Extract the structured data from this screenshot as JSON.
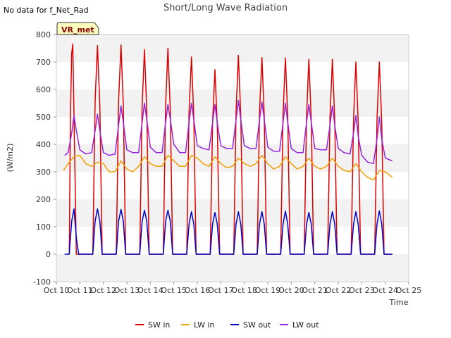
{
  "chart_data": {
    "type": "line",
    "title": "Short/Long Wave Radiation",
    "note": "No data for f_Net_Rad",
    "badge": "VR_met",
    "xlabel": "Time",
    "ylabel": "(W/m2)",
    "xlim": [
      10,
      25
    ],
    "ylim": [
      -100,
      800
    ],
    "x_ticks": [
      10,
      11,
      12,
      13,
      14,
      15,
      16,
      17,
      18,
      19,
      20,
      21,
      22,
      23,
      24,
      25
    ],
    "x_tick_labels": [
      "Oct 10",
      "Oct 11",
      "Oct 12",
      "Oct 13",
      "Oct 14",
      "Oct 15",
      "Oct 16",
      "Oct 17",
      "Oct 18",
      "Oct 19",
      "Oct 20",
      "Oct 21",
      "Oct 22",
      "Oct 23",
      "Oct 24",
      "Oct 25"
    ],
    "y_ticks": [
      -100,
      0,
      100,
      200,
      300,
      400,
      500,
      600,
      700,
      800
    ],
    "y_tick_labels": [
      "-100",
      "0",
      "100",
      "200",
      "300",
      "400",
      "500",
      "600",
      "700",
      "800"
    ],
    "grid": "alternating horizontal bands",
    "legend_position": "bottom",
    "series": [
      {
        "name": "SW in",
        "color": "#dd0000",
        "x": [
          10.55,
          10.6,
          10.65,
          10.7,
          10.75,
          10.8,
          10.85,
          10.95,
          11.55,
          11.65,
          11.75,
          11.85,
          11.95,
          12.55,
          12.65,
          12.75,
          12.85,
          12.95,
          13.55,
          13.65,
          13.75,
          13.85,
          13.95,
          14.55,
          14.65,
          14.75,
          14.85,
          14.95,
          15.55,
          15.65,
          15.75,
          15.85,
          15.95,
          16.55,
          16.65,
          16.75,
          16.85,
          16.95,
          17.55,
          17.65,
          17.75,
          17.85,
          17.95,
          18.55,
          18.65,
          18.75,
          18.85,
          18.95,
          19.55,
          19.65,
          19.75,
          19.85,
          19.95,
          20.55,
          20.65,
          20.75,
          20.85,
          20.95,
          21.55,
          21.65,
          21.75,
          21.85,
          21.95,
          22.55,
          22.65,
          22.75,
          22.85,
          22.95,
          23.55,
          23.65,
          23.75,
          23.85,
          23.95,
          24.3
        ],
        "y": [
          0,
          510,
          730,
          765,
          500,
          250,
          0,
          0,
          0,
          560,
          760,
          540,
          0,
          0,
          560,
          762,
          540,
          0,
          0,
          540,
          745,
          520,
          0,
          0,
          540,
          750,
          520,
          0,
          0,
          520,
          718,
          500,
          0,
          0,
          480,
          672,
          470,
          0,
          0,
          520,
          724,
          500,
          0,
          0,
          520,
          716,
          500,
          0,
          0,
          510,
          715,
          500,
          0,
          0,
          500,
          710,
          490,
          0,
          0,
          500,
          710,
          490,
          0,
          0,
          490,
          700,
          480,
          0,
          0,
          490,
          700,
          480,
          0,
          0
        ]
      },
      {
        "name": "LW in",
        "color": "#f0a000",
        "x": [
          10.3,
          10.5,
          10.75,
          11.0,
          11.25,
          11.5,
          11.75,
          12.0,
          12.25,
          12.5,
          12.75,
          13.0,
          13.25,
          13.5,
          13.75,
          14.0,
          14.25,
          14.5,
          14.75,
          15.0,
          15.25,
          15.5,
          15.75,
          16.0,
          16.25,
          16.5,
          16.75,
          17.0,
          17.25,
          17.5,
          17.75,
          18.0,
          18.25,
          18.5,
          18.75,
          19.0,
          19.25,
          19.5,
          19.75,
          20.0,
          20.25,
          20.5,
          20.75,
          21.0,
          21.25,
          21.5,
          21.75,
          22.0,
          22.25,
          22.5,
          22.75,
          23.0,
          23.25,
          23.5,
          23.75,
          24.0,
          24.3
        ],
        "y": [
          305,
          330,
          355,
          360,
          330,
          320,
          335,
          330,
          300,
          300,
          340,
          310,
          300,
          320,
          355,
          330,
          320,
          320,
          360,
          340,
          320,
          320,
          360,
          350,
          330,
          320,
          355,
          330,
          315,
          320,
          350,
          330,
          320,
          330,
          360,
          330,
          310,
          320,
          355,
          330,
          310,
          320,
          350,
          320,
          310,
          320,
          350,
          320,
          305,
          300,
          330,
          300,
          280,
          270,
          305,
          300,
          280
        ]
      },
      {
        "name": "SW out",
        "color": "#0000cc",
        "x": [
          10.35,
          10.55,
          10.65,
          10.75,
          10.85,
          10.95,
          11.55,
          11.65,
          11.75,
          11.85,
          11.95,
          12.55,
          12.65,
          12.75,
          12.85,
          12.95,
          13.55,
          13.65,
          13.75,
          13.85,
          13.95,
          14.55,
          14.65,
          14.75,
          14.85,
          14.95,
          15.55,
          15.65,
          15.75,
          15.85,
          15.95,
          16.55,
          16.65,
          16.75,
          16.85,
          16.95,
          17.55,
          17.65,
          17.75,
          17.85,
          17.95,
          18.55,
          18.65,
          18.75,
          18.85,
          18.95,
          19.55,
          19.65,
          19.75,
          19.85,
          19.95,
          20.55,
          20.65,
          20.75,
          20.85,
          20.95,
          21.55,
          21.65,
          21.75,
          21.85,
          21.95,
          22.55,
          22.65,
          22.75,
          22.85,
          22.95,
          23.55,
          23.65,
          23.75,
          23.85,
          23.95,
          24.3
        ],
        "y": [
          0,
          0,
          120,
          165,
          60,
          0,
          0,
          120,
          165,
          120,
          0,
          0,
          120,
          163,
          120,
          0,
          0,
          120,
          160,
          120,
          0,
          0,
          120,
          160,
          120,
          0,
          0,
          110,
          155,
          110,
          0,
          0,
          110,
          152,
          110,
          0,
          0,
          110,
          155,
          110,
          0,
          0,
          110,
          155,
          110,
          0,
          0,
          110,
          157,
          110,
          0,
          0,
          110,
          152,
          110,
          0,
          0,
          110,
          155,
          110,
          0,
          0,
          110,
          155,
          110,
          0,
          0,
          110,
          158,
          110,
          0,
          0
        ]
      },
      {
        "name": "LW out",
        "color": "#9922dd",
        "x": [
          10.35,
          10.5,
          10.65,
          10.75,
          10.85,
          11.0,
          11.25,
          11.5,
          11.65,
          11.75,
          11.85,
          12.0,
          12.25,
          12.5,
          12.65,
          12.75,
          12.85,
          13.0,
          13.25,
          13.5,
          13.65,
          13.75,
          13.85,
          14.0,
          14.25,
          14.5,
          14.65,
          14.75,
          14.85,
          15.0,
          15.25,
          15.5,
          15.65,
          15.75,
          15.85,
          16.0,
          16.25,
          16.5,
          16.65,
          16.75,
          16.85,
          17.0,
          17.25,
          17.5,
          17.65,
          17.75,
          17.85,
          18.0,
          18.25,
          18.5,
          18.65,
          18.75,
          18.85,
          19.0,
          19.25,
          19.5,
          19.65,
          19.75,
          19.85,
          20.0,
          20.25,
          20.5,
          20.65,
          20.75,
          20.85,
          21.0,
          21.25,
          21.5,
          21.65,
          21.75,
          21.85,
          22.0,
          22.25,
          22.5,
          22.65,
          22.75,
          22.85,
          23.0,
          23.25,
          23.5,
          23.65,
          23.75,
          23.85,
          24.0,
          24.3
        ],
        "y": [
          360,
          370,
          440,
          505,
          450,
          380,
          365,
          370,
          450,
          510,
          450,
          370,
          360,
          365,
          470,
          540,
          480,
          380,
          370,
          370,
          480,
          550,
          490,
          390,
          370,
          370,
          480,
          545,
          490,
          400,
          370,
          370,
          480,
          550,
          490,
          395,
          385,
          380,
          480,
          545,
          480,
          395,
          385,
          385,
          490,
          560,
          490,
          395,
          385,
          385,
          490,
          555,
          490,
          390,
          375,
          375,
          480,
          550,
          480,
          385,
          370,
          370,
          480,
          545,
          480,
          385,
          380,
          380,
          470,
          540,
          470,
          385,
          370,
          365,
          440,
          505,
          430,
          360,
          335,
          330,
          420,
          500,
          420,
          350,
          340
        ]
      }
    ]
  }
}
